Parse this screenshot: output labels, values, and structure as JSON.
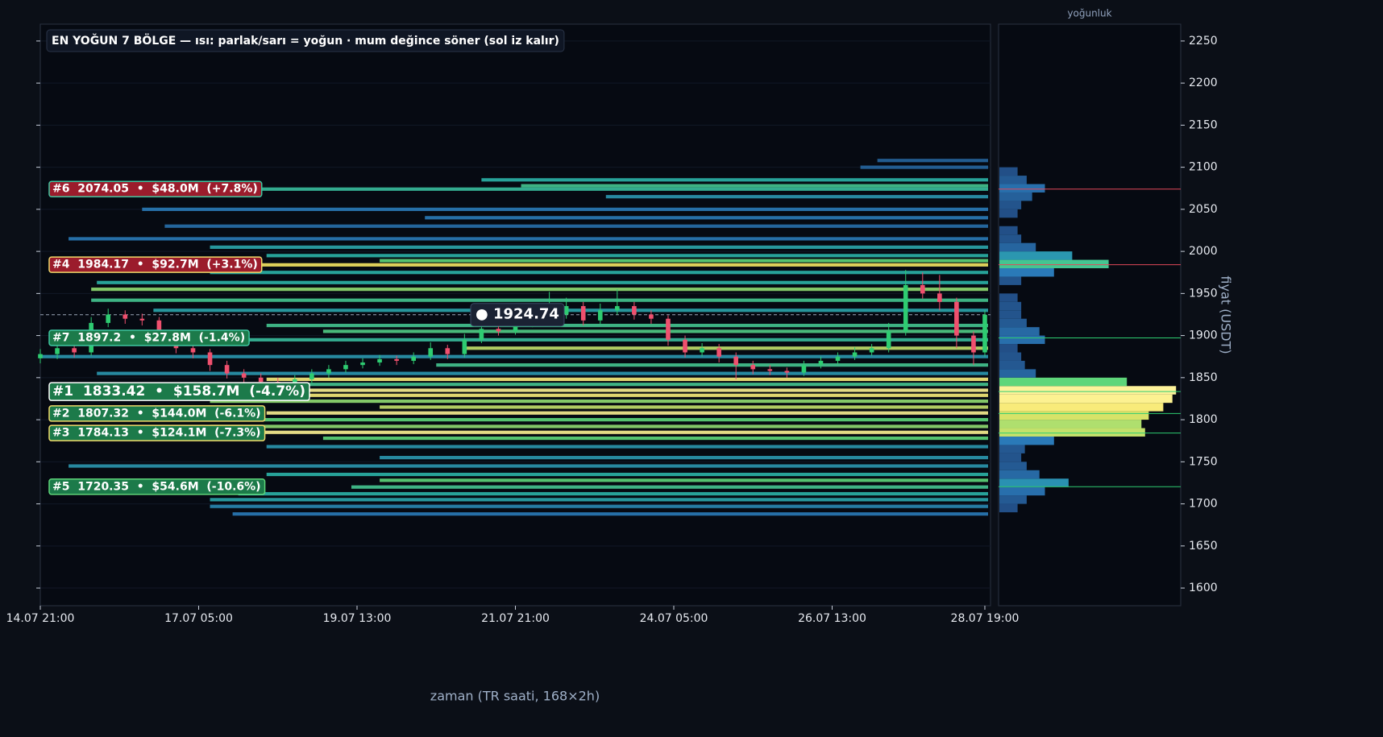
{
  "chart_data": {
    "type": "heatmap-candles",
    "title": "EN YOĞUN 7 BÖLGE — ısı: parlak/sarı = yoğun · mum değince söner (sol iz kalır)",
    "x_label": "zaman (TR saati, 168×2h)",
    "y_label": "fiyat (USDT)",
    "profile_label": "yoğunluk",
    "xlim": [
      0,
      168
    ],
    "ylim": [
      1579,
      2270
    ],
    "xticks": [
      {
        "value": 0,
        "label": "14.07 21:00"
      },
      {
        "value": 28,
        "label": "17.07 05:00"
      },
      {
        "value": 56,
        "label": "19.07 13:00"
      },
      {
        "value": 84,
        "label": "21.07 21:00"
      },
      {
        "value": 112,
        "label": "24.07 05:00"
      },
      {
        "value": 140,
        "label": "26.07 13:00"
      },
      {
        "value": 167,
        "label": "28.07 19:00"
      }
    ],
    "yticks": [
      1600,
      1650,
      1700,
      1750,
      1800,
      1850,
      1900,
      1950,
      2000,
      2050,
      2100,
      2150,
      2200,
      2250
    ],
    "grid": true,
    "up_color": "#2ecc71",
    "down_color": "#f0506e",
    "candles": {
      "x": [
        0,
        3,
        6,
        9,
        12,
        15,
        18,
        21,
        24,
        27,
        30,
        33,
        36,
        39,
        42,
        45,
        48,
        51,
        54,
        57,
        60,
        63,
        66,
        69,
        72,
        75,
        78,
        81,
        84,
        87,
        90,
        93,
        96,
        99,
        102,
        105,
        108,
        111,
        114,
        117,
        120,
        123,
        126,
        129,
        132,
        135,
        138,
        141,
        144,
        147,
        150,
        153,
        156,
        159,
        162,
        165,
        167
      ],
      "open": [
        1873,
        1878,
        1885,
        1880,
        1915,
        1925,
        1920,
        1918,
        1895,
        1885,
        1880,
        1865,
        1855,
        1850,
        1845,
        1842,
        1848,
        1855,
        1860,
        1865,
        1868,
        1872,
        1870,
        1875,
        1885,
        1878,
        1895,
        1908,
        1905,
        1915,
        1920,
        1925,
        1935,
        1918,
        1930,
        1935,
        1925,
        1920,
        1895,
        1880,
        1885,
        1875,
        1865,
        1860,
        1858,
        1856,
        1865,
        1870,
        1875,
        1880,
        1885,
        1905,
        1960,
        1950,
        1940,
        1900,
        1880
      ],
      "high": [
        1884,
        1890,
        1891,
        1922,
        1932,
        1930,
        1926,
        1922,
        1900,
        1890,
        1884,
        1870,
        1860,
        1855,
        1850,
        1853,
        1860,
        1865,
        1870,
        1873,
        1877,
        1876,
        1880,
        1892,
        1889,
        1902,
        1914,
        1913,
        1921,
        1926,
        1952,
        1945,
        1940,
        1938,
        1955,
        1940,
        1930,
        1924,
        1900,
        1891,
        1890,
        1880,
        1870,
        1865,
        1862,
        1870,
        1875,
        1880,
        1886,
        1890,
        1915,
        1978,
        1975,
        1972,
        1945,
        1905,
        1930
      ],
      "low": [
        1867,
        1872,
        1874,
        1876,
        1910,
        1914,
        1912,
        1889,
        1879,
        1873,
        1858,
        1849,
        1844,
        1839,
        1837,
        1838,
        1844,
        1850,
        1856,
        1861,
        1864,
        1865,
        1866,
        1871,
        1872,
        1874,
        1891,
        1900,
        1901,
        1910,
        1915,
        1920,
        1912,
        1914,
        1925,
        1919,
        1914,
        1888,
        1874,
        1875,
        1868,
        1848,
        1854,
        1853,
        1850,
        1852,
        1861,
        1866,
        1871,
        1876,
        1880,
        1900,
        1944,
        1930,
        1885,
        1865,
        1875
      ],
      "close": [
        1878,
        1885,
        1880,
        1915,
        1925,
        1920,
        1918,
        1895,
        1885,
        1880,
        1865,
        1855,
        1850,
        1845,
        1842,
        1848,
        1855,
        1860,
        1865,
        1868,
        1872,
        1870,
        1875,
        1885,
        1878,
        1895,
        1908,
        1905,
        1915,
        1920,
        1925,
        1935,
        1918,
        1930,
        1935,
        1925,
        1920,
        1895,
        1880,
        1885,
        1875,
        1865,
        1860,
        1858,
        1856,
        1865,
        1870,
        1875,
        1880,
        1885,
        1905,
        1960,
        1950,
        1940,
        1900,
        1880,
        1924.74
      ]
    },
    "bands": {
      "price": [
        2108,
        2100,
        2085,
        2078,
        2074,
        2065,
        2050,
        2040,
        2030,
        2015,
        2005,
        1995,
        1989,
        1984,
        1975,
        1963,
        1955,
        1942,
        1930,
        1912,
        1905,
        1895,
        1885,
        1875,
        1865,
        1855,
        1848,
        1842,
        1835,
        1829,
        1822,
        1815,
        1808,
        1800,
        1792,
        1785,
        1778,
        1768,
        1755,
        1745,
        1735,
        1728,
        1720,
        1712,
        1705,
        1697,
        1688
      ],
      "start": [
        148,
        145,
        78,
        85,
        2,
        100,
        18,
        68,
        22,
        5,
        30,
        40,
        60,
        15,
        30,
        10,
        9,
        9,
        20,
        40,
        50,
        20,
        75,
        0,
        70,
        10,
        40,
        5,
        12,
        40,
        30,
        60,
        40,
        20,
        30,
        10,
        50,
        40,
        60,
        5,
        40,
        60,
        55,
        35,
        30,
        30,
        34
      ],
      "intensity": [
        0.2,
        0.2,
        0.5,
        0.6,
        0.55,
        0.4,
        0.3,
        0.3,
        0.25,
        0.3,
        0.45,
        0.5,
        0.7,
        0.85,
        0.5,
        0.5,
        0.75,
        0.6,
        0.45,
        0.6,
        0.65,
        0.55,
        0.8,
        0.4,
        0.6,
        0.4,
        0.9,
        0.6,
        0.95,
        0.9,
        0.75,
        0.8,
        0.95,
        0.7,
        0.75,
        0.95,
        0.7,
        0.4,
        0.4,
        0.4,
        0.5,
        0.7,
        0.6,
        0.5,
        0.45,
        0.35,
        0.3
      ]
    },
    "profile": {
      "xlim": [
        0,
        100
      ],
      "price": [
        1695,
        1705,
        1715,
        1725,
        1735,
        1745,
        1755,
        1765,
        1775,
        1785,
        1795,
        1805,
        1815,
        1825,
        1835,
        1845,
        1855,
        1865,
        1875,
        1885,
        1895,
        1905,
        1915,
        1925,
        1935,
        1945,
        1955,
        1965,
        1975,
        1985,
        1995,
        2005,
        2015,
        2025,
        2035,
        2045,
        2055,
        2065,
        2075,
        2085,
        2095
      ],
      "density": [
        10,
        15,
        25,
        38,
        22,
        15,
        12,
        14,
        30,
        80,
        78,
        82,
        90,
        95,
        97,
        70,
        20,
        14,
        12,
        10,
        25,
        22,
        15,
        12,
        12,
        10,
        0,
        12,
        30,
        60,
        40,
        20,
        12,
        10,
        0,
        10,
        12,
        18,
        25,
        15,
        10
      ]
    },
    "current_price": 1924.74,
    "current_label": "● 1924.74",
    "zones": [
      {
        "label": "#6  2074.05  •  $48.0M  (+7.8%)",
        "price": 2074.05,
        "fill": "#9b1c2c",
        "border": "#3fc6a0"
      },
      {
        "label": "#4  1984.17  •  $92.7M  (+3.1%)",
        "price": 1984.17,
        "fill": "#9b1c2c",
        "border": "#f0d96a"
      },
      {
        "label": "#7  1897.2  •  $27.8M  (-1.4%)",
        "price": 1897.2,
        "fill": "#1c7a4a",
        "border": "#3fc6a0"
      },
      {
        "label": "#1  1833.42  •  $158.7M  (-4.7%)",
        "price": 1833.42,
        "fill": "#1c7a4a",
        "border": "#ffffff"
      },
      {
        "label": "#2  1807.32  •  $144.0M  (-6.1%)",
        "price": 1807.32,
        "fill": "#1c7a4a",
        "border": "#f0d96a"
      },
      {
        "label": "#3  1784.13  •  $124.1M  (-7.3%)",
        "price": 1784.13,
        "fill": "#1c7a4a",
        "border": "#f0d96a"
      },
      {
        "label": "#5  1720.35  •  $54.6M  (-10.6%)",
        "price": 1720.35,
        "fill": "#1c7a4a",
        "border": "#5ed67a"
      }
    ]
  }
}
